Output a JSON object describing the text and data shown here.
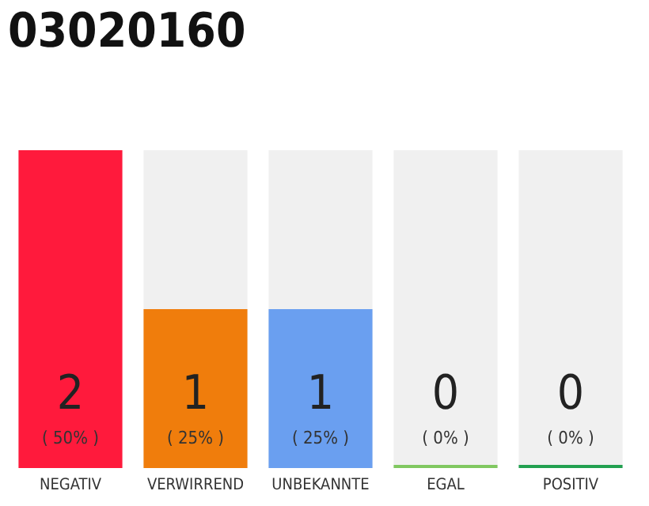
{
  "chart_data": {
    "type": "bar",
    "title": "03020160",
    "categories": [
      "NEGATIV",
      "VERWIRREND",
      "UNBEKANNTE",
      "EGAL",
      "POSITIV"
    ],
    "values": [
      2,
      1,
      1,
      0,
      0
    ],
    "colors": [
      "#ff1a3c",
      "#f07d0c",
      "#6a9ff0",
      "#80c860",
      "#22a050"
    ],
    "value_labels": [
      "2\n( 50% )",
      "1\n( 25% )",
      "1\n( 25% )",
      "0\n( 0% )",
      "0\n( 0% )"
    ]
  }
}
